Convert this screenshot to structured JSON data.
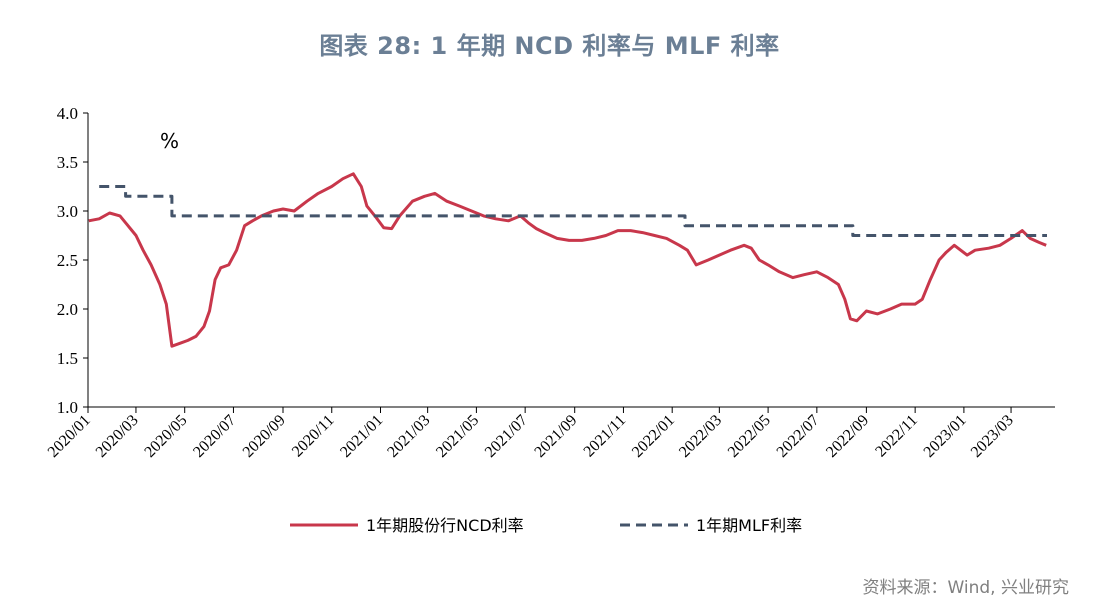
{
  "title": "图表 28: 1 年期 NCD 利率与 MLF 利率",
  "source": "资料来源：Wind, 兴业研究",
  "chart_data": {
    "type": "line",
    "unit_label": "%",
    "ylim": [
      1.0,
      4.0
    ],
    "yticks": [
      "4.0",
      "3.5",
      "3.0",
      "2.5",
      "2.0",
      "1.5",
      "1.0"
    ],
    "xlim": [
      "2020-01",
      "2023-04"
    ],
    "xticks": [
      "2020/01",
      "2020/03",
      "2020/05",
      "2020/07",
      "2020/09",
      "2020/11",
      "2021/01",
      "2021/03",
      "2021/05",
      "2021/07",
      "2021/09",
      "2021/11",
      "2022/01",
      "2022/03",
      "2022/05",
      "2022/07",
      "2022/09",
      "2022/11",
      "2023/01",
      "2023/03"
    ],
    "legend_position": "bottom",
    "grid": false,
    "series": [
      {
        "name": "1年期股份行NCD利率",
        "color": "#c8374b",
        "style": "solid",
        "points": [
          [
            "2020-01-02",
            2.9
          ],
          [
            "2020-01-15",
            2.92
          ],
          [
            "2020-01-28",
            2.98
          ],
          [
            "2020-02-10",
            2.95
          ],
          [
            "2020-02-20",
            2.85
          ],
          [
            "2020-03-01",
            2.75
          ],
          [
            "2020-03-10",
            2.6
          ],
          [
            "2020-03-20",
            2.45
          ],
          [
            "2020-03-31",
            2.25
          ],
          [
            "2020-04-08",
            2.05
          ],
          [
            "2020-04-15",
            1.62
          ],
          [
            "2020-04-25",
            1.65
          ],
          [
            "2020-05-05",
            1.68
          ],
          [
            "2020-05-15",
            1.72
          ],
          [
            "2020-05-25",
            1.82
          ],
          [
            "2020-06-01",
            1.98
          ],
          [
            "2020-06-08",
            2.3
          ],
          [
            "2020-06-15",
            2.42
          ],
          [
            "2020-06-25",
            2.45
          ],
          [
            "2020-07-05",
            2.6
          ],
          [
            "2020-07-15",
            2.85
          ],
          [
            "2020-07-25",
            2.9
          ],
          [
            "2020-08-05",
            2.95
          ],
          [
            "2020-08-20",
            3.0
          ],
          [
            "2020-09-01",
            3.02
          ],
          [
            "2020-09-15",
            3.0
          ],
          [
            "2020-10-01",
            3.1
          ],
          [
            "2020-10-15",
            3.18
          ],
          [
            "2020-11-01",
            3.25
          ],
          [
            "2020-11-15",
            3.33
          ],
          [
            "2020-11-28",
            3.38
          ],
          [
            "2020-12-08",
            3.25
          ],
          [
            "2020-12-15",
            3.05
          ],
          [
            "2020-12-25",
            2.95
          ],
          [
            "2021-01-05",
            2.83
          ],
          [
            "2021-01-15",
            2.82
          ],
          [
            "2021-01-25",
            2.95
          ],
          [
            "2021-02-10",
            3.1
          ],
          [
            "2021-02-25",
            3.15
          ],
          [
            "2021-03-10",
            3.18
          ],
          [
            "2021-03-25",
            3.1
          ],
          [
            "2021-04-10",
            3.05
          ],
          [
            "2021-04-25",
            3.0
          ],
          [
            "2021-05-10",
            2.95
          ],
          [
            "2021-05-25",
            2.92
          ],
          [
            "2021-06-10",
            2.9
          ],
          [
            "2021-06-25",
            2.95
          ],
          [
            "2021-07-05",
            2.88
          ],
          [
            "2021-07-15",
            2.82
          ],
          [
            "2021-07-25",
            2.78
          ],
          [
            "2021-08-10",
            2.72
          ],
          [
            "2021-08-25",
            2.7
          ],
          [
            "2021-09-10",
            2.7
          ],
          [
            "2021-09-25",
            2.72
          ],
          [
            "2021-10-10",
            2.75
          ],
          [
            "2021-10-25",
            2.8
          ],
          [
            "2021-11-10",
            2.8
          ],
          [
            "2021-11-25",
            2.78
          ],
          [
            "2021-12-10",
            2.75
          ],
          [
            "2021-12-25",
            2.72
          ],
          [
            "2022-01-10",
            2.65
          ],
          [
            "2022-01-20",
            2.6
          ],
          [
            "2022-01-31",
            2.45
          ],
          [
            "2022-02-15",
            2.5
          ],
          [
            "2022-03-01",
            2.55
          ],
          [
            "2022-03-15",
            2.6
          ],
          [
            "2022-04-01",
            2.65
          ],
          [
            "2022-04-10",
            2.62
          ],
          [
            "2022-04-20",
            2.5
          ],
          [
            "2022-05-01",
            2.45
          ],
          [
            "2022-05-15",
            2.38
          ],
          [
            "2022-06-01",
            2.32
          ],
          [
            "2022-06-15",
            2.35
          ],
          [
            "2022-07-01",
            2.38
          ],
          [
            "2022-07-15",
            2.32
          ],
          [
            "2022-07-28",
            2.25
          ],
          [
            "2022-08-05",
            2.1
          ],
          [
            "2022-08-12",
            1.9
          ],
          [
            "2022-08-20",
            1.88
          ],
          [
            "2022-09-01",
            1.98
          ],
          [
            "2022-09-15",
            1.95
          ],
          [
            "2022-10-01",
            2.0
          ],
          [
            "2022-10-15",
            2.05
          ],
          [
            "2022-11-01",
            2.05
          ],
          [
            "2022-11-10",
            2.1
          ],
          [
            "2022-11-20",
            2.3
          ],
          [
            "2022-12-01",
            2.5
          ],
          [
            "2022-12-10",
            2.58
          ],
          [
            "2022-12-20",
            2.65
          ],
          [
            "2023-01-05",
            2.55
          ],
          [
            "2023-01-15",
            2.6
          ],
          [
            "2023-02-01",
            2.62
          ],
          [
            "2023-02-15",
            2.65
          ],
          [
            "2023-03-01",
            2.72
          ],
          [
            "2023-03-15",
            2.8
          ],
          [
            "2023-03-25",
            2.72
          ],
          [
            "2023-04-05",
            2.68
          ],
          [
            "2023-04-14",
            2.65
          ]
        ]
      },
      {
        "name": "1年期MLF利率",
        "color": "#44546a",
        "style": "dashed",
        "points": [
          [
            "2020-01-15",
            3.25
          ],
          [
            "2020-02-17",
            3.25
          ],
          [
            "2020-02-17",
            3.15
          ],
          [
            "2020-04-15",
            3.15
          ],
          [
            "2020-04-15",
            2.95
          ],
          [
            "2022-01-17",
            2.95
          ],
          [
            "2022-01-17",
            2.85
          ],
          [
            "2022-08-15",
            2.85
          ],
          [
            "2022-08-15",
            2.75
          ],
          [
            "2023-04-15",
            2.75
          ]
        ]
      }
    ]
  }
}
